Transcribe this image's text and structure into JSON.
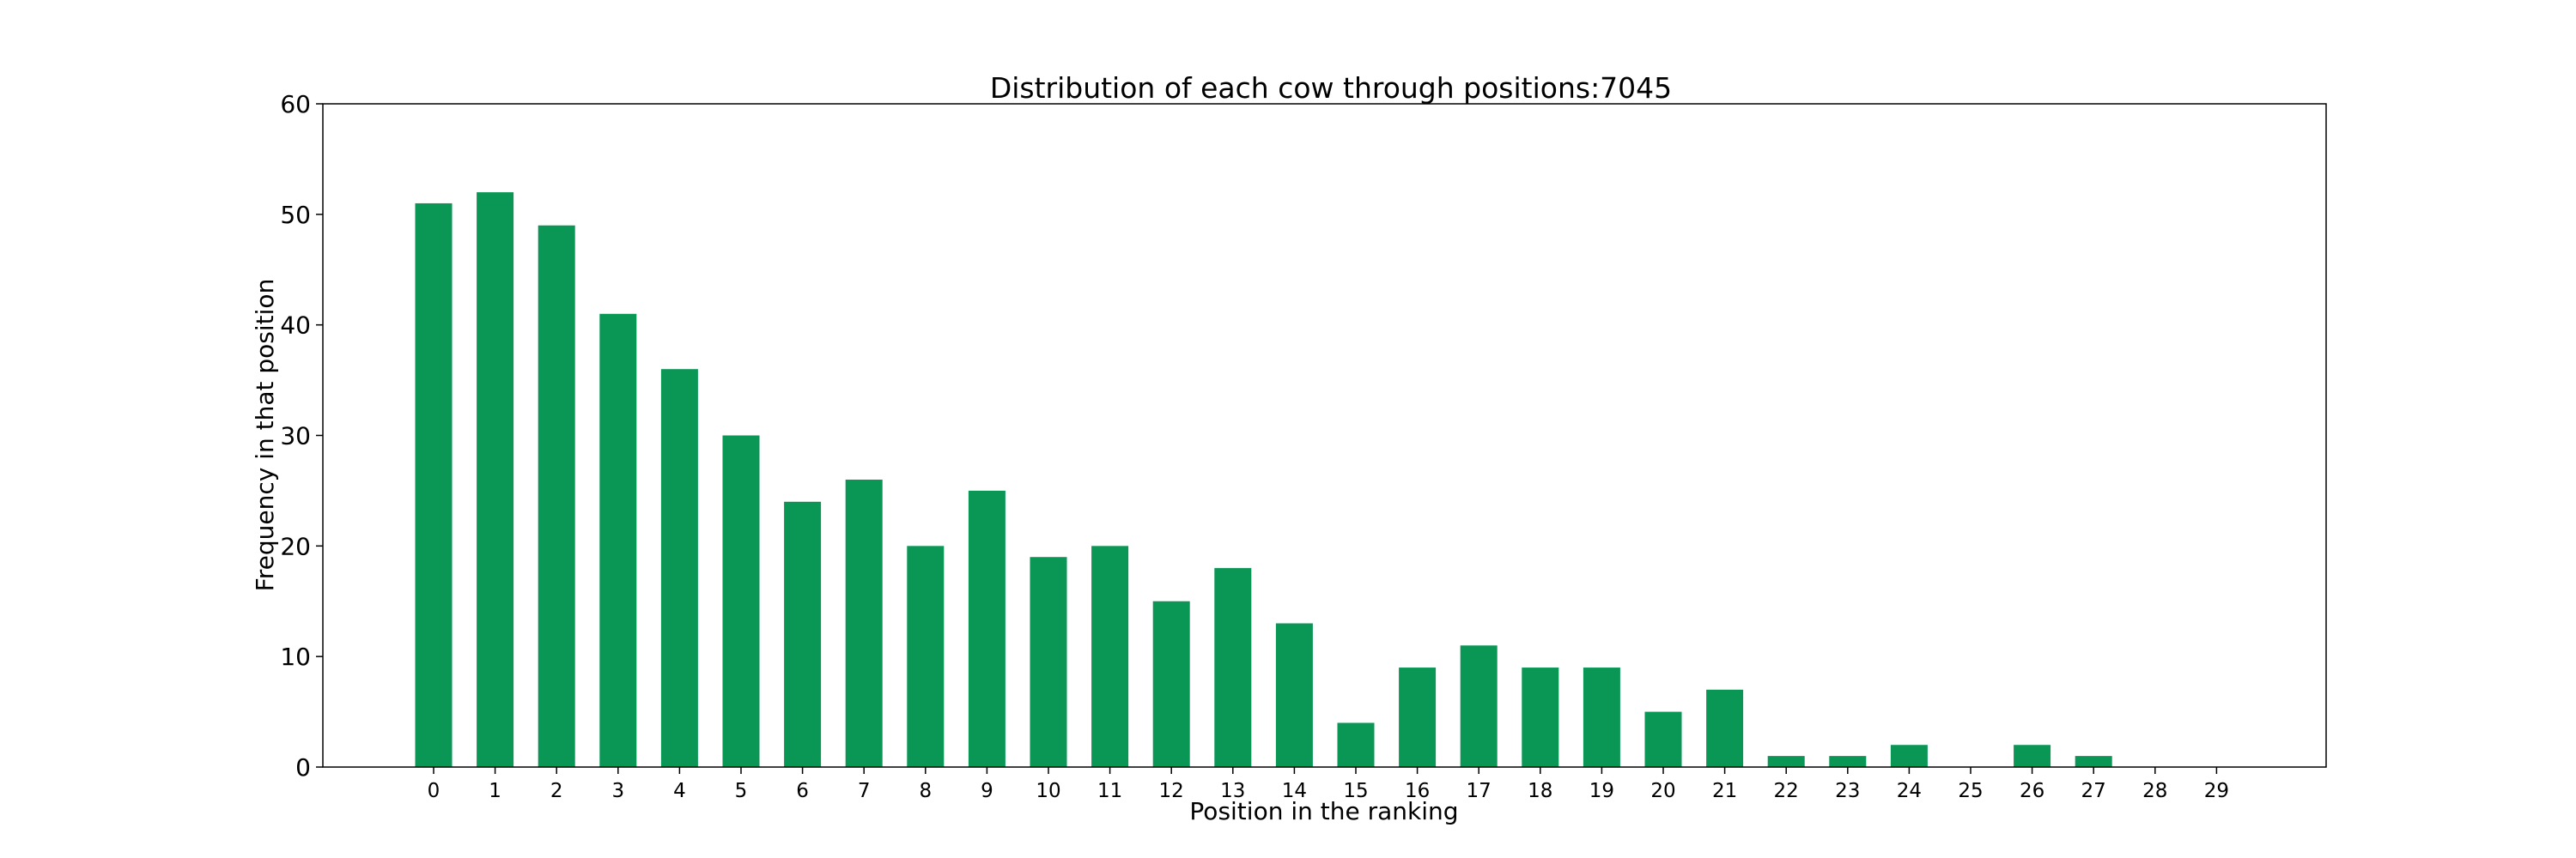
{
  "chart_data": {
    "type": "bar",
    "title": "Distribution of each cow through positions:7045",
    "xlabel": "Position in the ranking",
    "ylabel": "Frequency in that position",
    "categories": [
      "0",
      "1",
      "2",
      "3",
      "4",
      "5",
      "6",
      "7",
      "8",
      "9",
      "10",
      "11",
      "12",
      "13",
      "14",
      "15",
      "16",
      "17",
      "18",
      "19",
      "20",
      "21",
      "22",
      "23",
      "24",
      "25",
      "26",
      "27",
      "28",
      "29"
    ],
    "values": [
      51,
      52,
      49,
      41,
      36,
      30,
      24,
      26,
      20,
      25,
      19,
      20,
      15,
      18,
      13,
      4,
      9,
      11,
      9,
      9,
      5,
      7,
      1,
      1,
      2,
      0,
      2,
      1,
      0,
      0
    ],
    "ylim": [
      0,
      60
    ],
    "yticks": [
      0,
      10,
      20,
      30,
      40,
      50,
      60
    ],
    "bar_color": "#0a9655",
    "grid": false,
    "legend": "none"
  }
}
